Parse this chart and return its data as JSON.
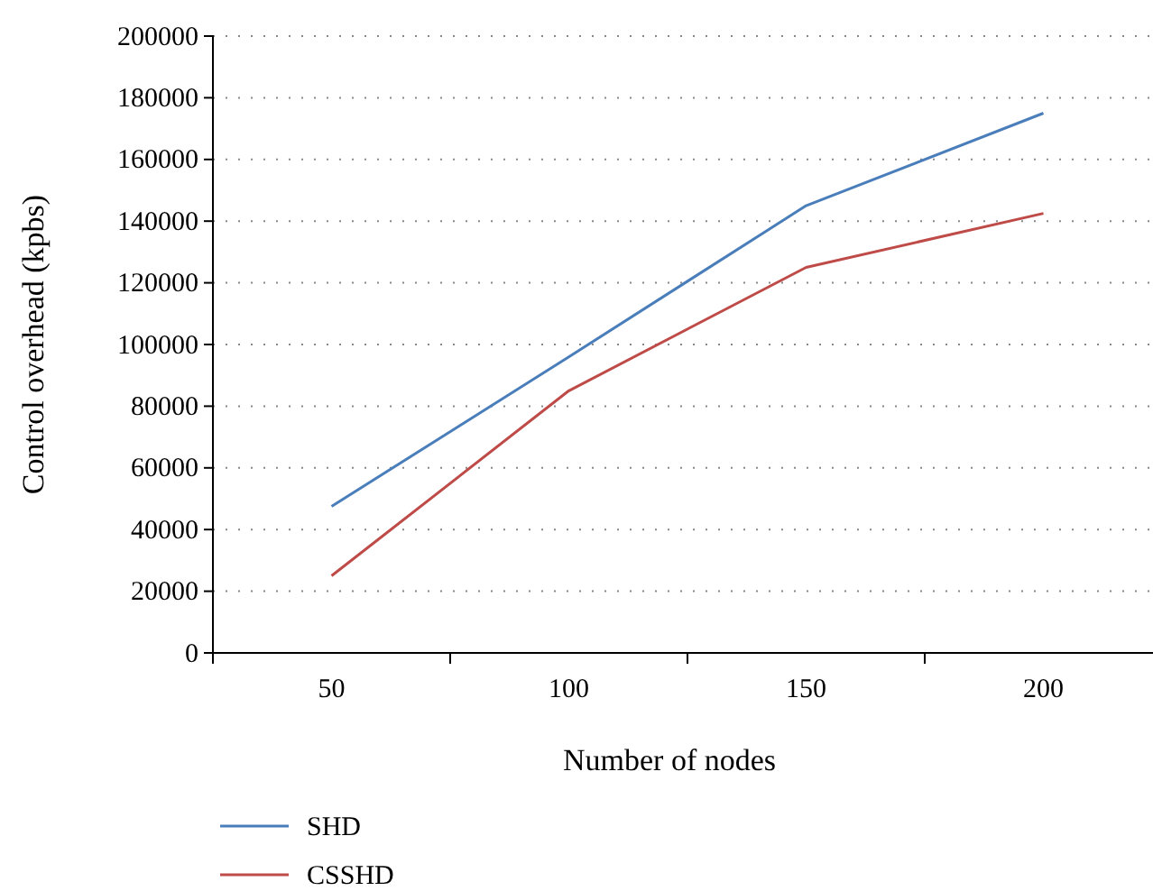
{
  "chart_data": {
    "type": "line",
    "xlabel": "Number of nodes",
    "ylabel": "Control overhead (kpbs)",
    "categories": [
      "50",
      "100",
      "150",
      "200"
    ],
    "series": [
      {
        "name": "SHD",
        "color": "#4a7ebb",
        "values": [
          47500,
          96000,
          145000,
          175000
        ]
      },
      {
        "name": "CSSHD",
        "color": "#be4b48",
        "values": [
          25000,
          85000,
          125000,
          142500
        ]
      }
    ],
    "ylim": [
      0,
      200000
    ],
    "yticks": [
      0,
      20000,
      40000,
      60000,
      80000,
      100000,
      120000,
      140000,
      160000,
      180000,
      200000
    ],
    "grid": "y",
    "legend": "bottom left",
    "marker": "none",
    "line_style": "solid"
  }
}
